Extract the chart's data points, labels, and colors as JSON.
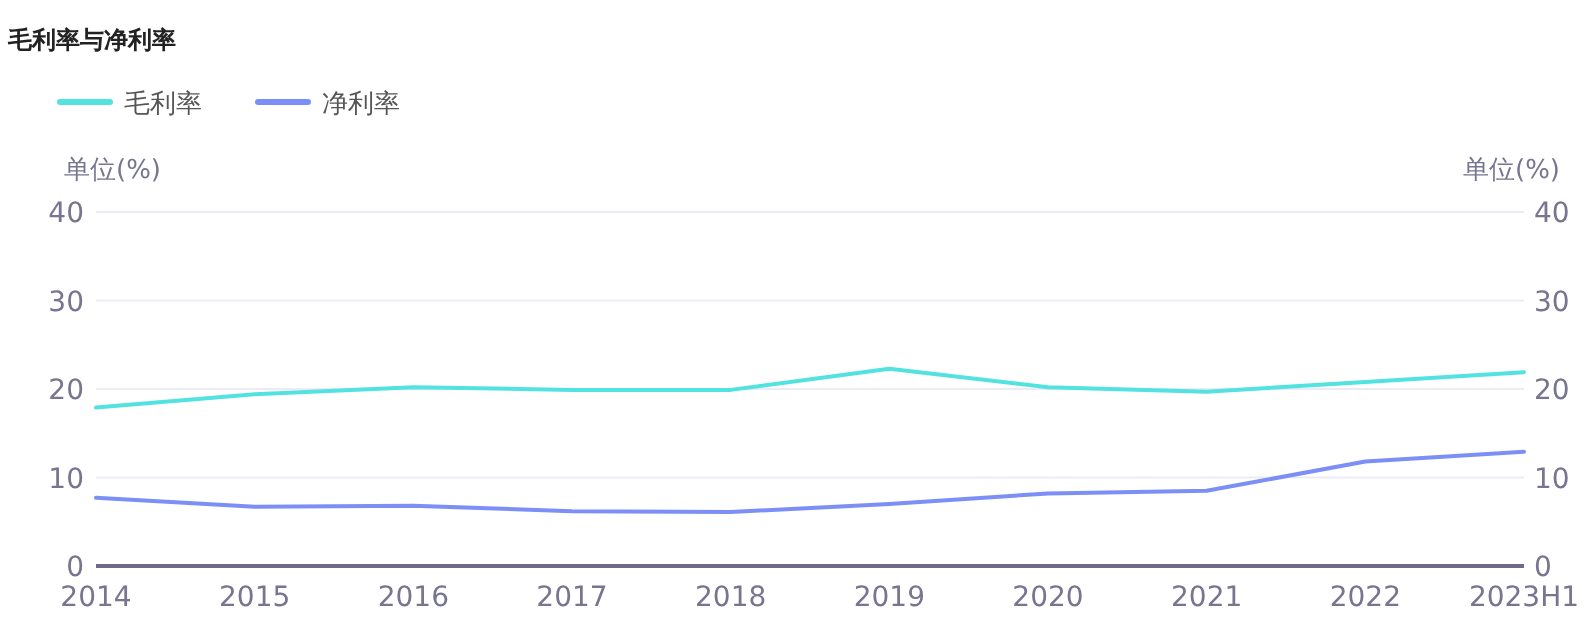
{
  "chart_data": {
    "type": "line",
    "title": "毛利率与净利率",
    "categories": [
      "2014",
      "2015",
      "2016",
      "2017",
      "2018",
      "2019",
      "2020",
      "2021",
      "2022",
      "2023H1"
    ],
    "series": [
      {
        "name": "毛利率",
        "color": "#52e3e1",
        "values": [
          17.9,
          19.4,
          20.2,
          19.9,
          19.9,
          22.3,
          20.2,
          19.7,
          20.8,
          21.9
        ]
      },
      {
        "name": "净利率",
        "color": "#7b8ff7",
        "values": [
          7.7,
          6.7,
          6.8,
          6.2,
          6.1,
          7.0,
          8.2,
          8.5,
          11.8,
          12.9
        ]
      }
    ],
    "ylabel": "单位(%)",
    "y2label": "单位(%)",
    "ylim": [
      0,
      40
    ],
    "yticks": [
      0,
      10,
      20,
      30,
      40
    ],
    "y2lim": [
      0,
      40
    ],
    "y2ticks": [
      0,
      10,
      20,
      30,
      40
    ],
    "grid": "y",
    "legend": "top left",
    "marker": "none",
    "line_style": "solid"
  }
}
